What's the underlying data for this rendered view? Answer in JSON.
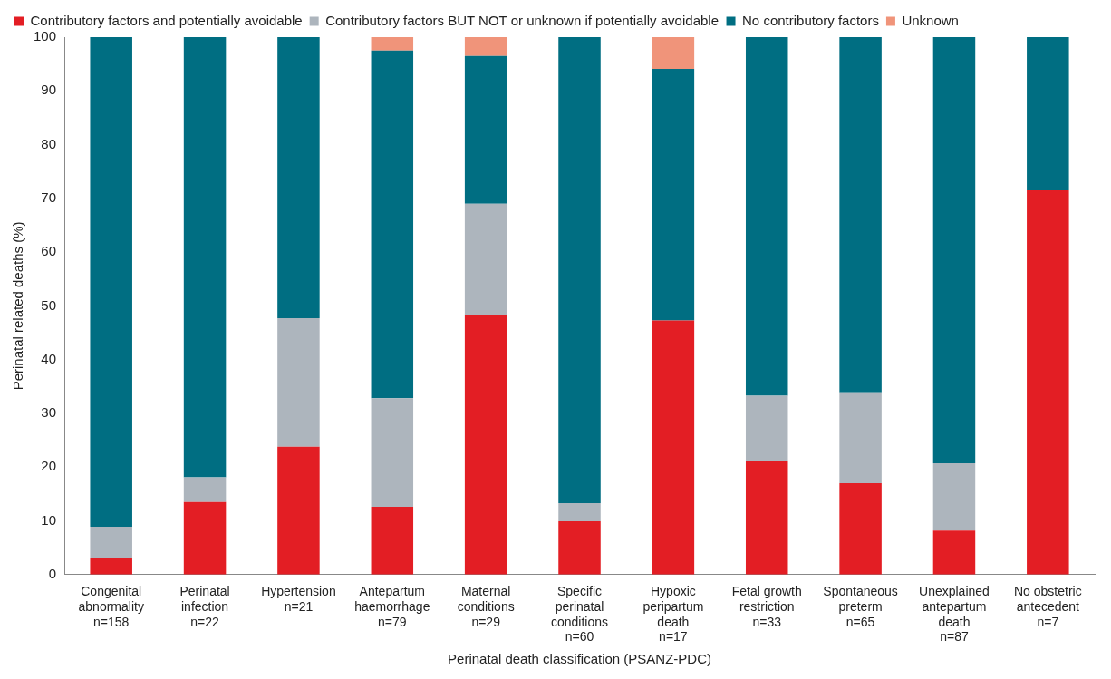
{
  "chart_data": {
    "type": "bar",
    "stacked": true,
    "xlabel": "Perinatal death classification (PSANZ-PDC)",
    "ylabel": "Perinatal related deaths (%)",
    "legend": "top left",
    "categories": [
      "Congenital\nabnormality\nn=158",
      "Perinatal\ninfection\nn=22",
      "Hypertension\nn=21",
      "Antepartum\nhaemorrhage\nn=79",
      "Maternal\nconditions\nn=29",
      "Specific\nperinatal\nconditions\nn=60",
      "Hypoxic\nperipartum\ndeath\nn=17",
      "Fetal growth\nrestriction\nn=33",
      "Spontaneous\npreterm\nn=65",
      "Unexplained\nantepartum\ndeath\nn=87",
      "No obstetric\nantecedent\nn=7"
    ],
    "series": [
      {
        "name": "Contributory factors and potentially avoidable",
        "color": "#e31e24",
        "values": [
          3.0,
          13.5,
          23.8,
          12.6,
          48.4,
          9.9,
          47.3,
          21.1,
          17.0,
          8.2,
          71.5
        ]
      },
      {
        "name": "Contributory factors BUT NOT or unknown if potentially avoidable",
        "color": "#adb5bd",
        "values": [
          5.9,
          4.6,
          23.9,
          20.2,
          20.6,
          3.4,
          0,
          12.2,
          16.9,
          12.5,
          0
        ]
      },
      {
        "name": "No contributory factors",
        "color": "#006e82",
        "values": [
          91.1,
          81.9,
          52.3,
          64.7,
          27.5,
          86.7,
          46.8,
          66.7,
          66.1,
          79.3,
          28.5
        ]
      },
      {
        "name": "Unknown",
        "color": "#f0947a",
        "values": [
          0,
          0,
          0,
          2.5,
          3.5,
          0,
          5.9,
          0,
          0,
          0,
          0
        ]
      }
    ],
    "ylim": [
      0,
      100
    ],
    "yticks": [
      0,
      10,
      20,
      30,
      40,
      50,
      60,
      70,
      80,
      90,
      100
    ]
  }
}
